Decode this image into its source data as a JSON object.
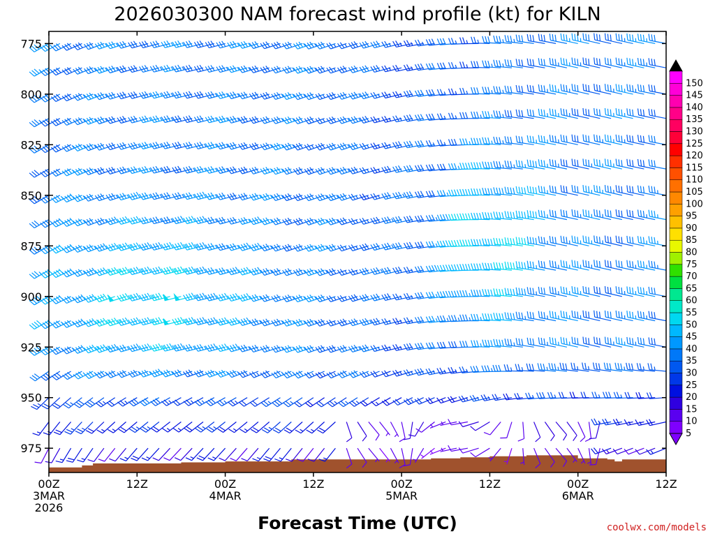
{
  "chart_data": {
    "type": "wind-barb-time-height",
    "title": "2026030300 NAM forecast wind profile (kt) for KILN",
    "xlabel": "Forecast Time (UTC)",
    "ylabel": "",
    "credit": "coolwx.com/models",
    "units": "kt",
    "y_axis": {
      "range": [
        987,
        769
      ],
      "inverted": true,
      "ticks": [
        775,
        800,
        825,
        850,
        875,
        900,
        925,
        950,
        975
      ]
    },
    "x_axis": {
      "range": [
        0,
        84
      ],
      "ticks": [
        {
          "hour": 0,
          "lines": [
            "00Z",
            "3MAR",
            "2026"
          ]
        },
        {
          "hour": 12,
          "lines": [
            "12Z"
          ]
        },
        {
          "hour": 24,
          "lines": [
            "00Z",
            "4MAR"
          ]
        },
        {
          "hour": 36,
          "lines": [
            "12Z"
          ]
        },
        {
          "hour": 48,
          "lines": [
            "00Z",
            "5MAR"
          ]
        },
        {
          "hour": 60,
          "lines": [
            "12Z"
          ]
        },
        {
          "hour": 72,
          "lines": [
            "00Z",
            "6MAR"
          ]
        },
        {
          "hour": 84,
          "lines": [
            "12Z"
          ]
        }
      ]
    },
    "colorbar": {
      "levels": [
        5,
        10,
        15,
        20,
        25,
        30,
        35,
        40,
        45,
        50,
        55,
        60,
        65,
        70,
        75,
        80,
        85,
        90,
        95,
        100,
        105,
        110,
        115,
        120,
        125,
        130,
        135,
        140,
        145,
        150
      ],
      "colors": [
        "#7f00ff",
        "#5a00f0",
        "#2f00e0",
        "#0010e0",
        "#0038e8",
        "#0058f0",
        "#0078f8",
        "#0098ff",
        "#00b8ff",
        "#00d8f0",
        "#00e8c8",
        "#00e890",
        "#00e040",
        "#30e000",
        "#a0f000",
        "#e8f800",
        "#ffe000",
        "#ffc000",
        "#ffa000",
        "#ff8800",
        "#ff7000",
        "#ff5000",
        "#ff3000",
        "#ff0000",
        "#ff0038",
        "#ff0060",
        "#ff0088",
        "#ff00b0",
        "#ff00d8",
        "#ff00ff"
      ],
      "over_color": "#000000",
      "under_color": "#7f00ff"
    },
    "terrain": {
      "color": "#a0522d",
      "surface_pressure": [
        [
          0,
          984.5
        ],
        [
          3,
          984.5
        ],
        [
          4.5,
          983.5
        ],
        [
          6,
          982.5
        ],
        [
          12,
          982.5
        ],
        [
          18,
          982
        ],
        [
          24,
          981.5
        ],
        [
          30,
          981.5
        ],
        [
          33,
          980.5
        ],
        [
          36,
          980.5
        ],
        [
          40,
          980.5
        ],
        [
          44,
          980.5
        ],
        [
          48,
          980.5
        ],
        [
          52,
          980
        ],
        [
          56,
          979.5
        ],
        [
          60,
          979
        ],
        [
          64,
          979
        ],
        [
          65,
          978.5
        ],
        [
          70,
          978.5
        ],
        [
          72,
          980
        ],
        [
          76,
          980.5
        ],
        [
          77,
          981.5
        ],
        [
          78,
          980.5
        ],
        [
          84,
          980.5
        ]
      ]
    },
    "wind_profile": {
      "description": "Wind barb field: barbs every 1.5 h from 0 to 84 h, pressure levels 775-985 hPa; speed/direction per grid point is represented by barb shape and colour.",
      "levels": [
        775,
        787,
        800,
        812,
        825,
        837,
        850,
        862,
        875,
        887,
        900,
        912,
        925,
        937,
        950,
        962,
        975,
        985
      ],
      "hour_step": 1.5,
      "regimes": [
        {
          "name": "southwesterly jet 0-48h",
          "speed_kt_range": [
            20,
            50
          ],
          "max_near": {
            "hour": 15,
            "level": 912,
            "speed_kt": 50
          }
        },
        {
          "name": "westerly flow 48-84h",
          "speed_kt_range": [
            15,
            55
          ],
          "max_near": {
            "hour": 60,
            "level": 875,
            "speed_kt": 55
          }
        },
        {
          "name": "light variable near surface",
          "speed_kt_range": [
            5,
            15
          ]
        }
      ]
    }
  }
}
